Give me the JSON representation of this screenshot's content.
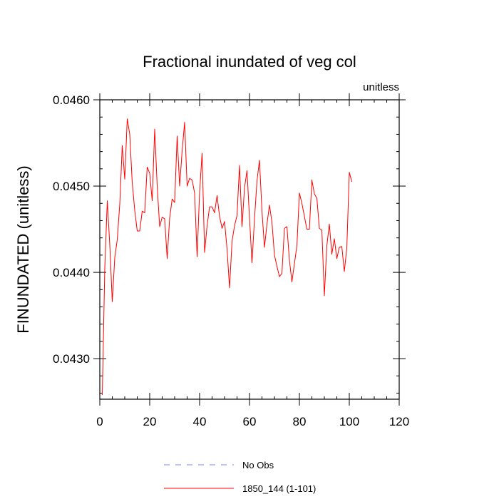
{
  "chart_data": {
    "type": "line",
    "title": "Fractional inundated of veg col",
    "units_label": "unitless",
    "xlabel": "",
    "ylabel": "FINUNDATED  (unitless)",
    "xlim": [
      0,
      120
    ],
    "ylim": [
      0.04253,
      0.046
    ],
    "xticks": [
      0,
      20,
      40,
      60,
      80,
      100,
      120
    ],
    "xtick_labels": [
      "0",
      "20",
      "40",
      "60",
      "80",
      "100",
      "120"
    ],
    "yticks": [
      0.043,
      0.044,
      0.045,
      0.046
    ],
    "ytick_labels": [
      "0.0430",
      "0.0440",
      "0.0450",
      "0.0460"
    ],
    "grid": false,
    "legend_position": "bottom-center",
    "legend": [
      {
        "label": "No Obs",
        "color": "#8080ff",
        "dash": "dashed"
      },
      {
        "label": "1850_144 (1-101)",
        "color": "#ff0000",
        "dash": "solid"
      }
    ],
    "series": [
      {
        "name": "1850_144 (1-101)",
        "color": "#ff0000",
        "x": [
          1,
          2,
          3,
          4,
          5,
          6,
          7,
          8,
          9,
          10,
          11,
          12,
          13,
          14,
          15,
          16,
          17,
          18,
          19,
          20,
          21,
          22,
          23,
          24,
          25,
          26,
          27,
          28,
          29,
          30,
          31,
          32,
          33,
          34,
          35,
          36,
          37,
          38,
          39,
          40,
          41,
          42,
          43,
          44,
          45,
          46,
          47,
          48,
          49,
          50,
          51,
          52,
          53,
          54,
          55,
          56,
          57,
          58,
          59,
          60,
          61,
          62,
          63,
          64,
          65,
          66,
          67,
          68,
          69,
          70,
          71,
          72,
          73,
          74,
          75,
          76,
          77,
          78,
          79,
          80,
          81,
          82,
          83,
          84,
          85,
          86,
          87,
          88,
          89,
          90,
          91,
          92,
          93,
          94,
          95,
          96,
          97,
          98,
          99,
          100,
          101
        ],
        "values": [
          0.04258,
          0.04405,
          0.04483,
          0.04432,
          0.04366,
          0.04417,
          0.04438,
          0.04479,
          0.04547,
          0.04508,
          0.04578,
          0.0456,
          0.04504,
          0.04472,
          0.04448,
          0.04448,
          0.04471,
          0.04469,
          0.04522,
          0.04515,
          0.04483,
          0.04566,
          0.045,
          0.04453,
          0.04464,
          0.04462,
          0.04416,
          0.04463,
          0.04485,
          0.04481,
          0.04558,
          0.045,
          0.04541,
          0.04574,
          0.045,
          0.04509,
          0.04507,
          0.04492,
          0.04418,
          0.04493,
          0.04538,
          0.04423,
          0.04454,
          0.04476,
          0.04476,
          0.04469,
          0.04489,
          0.04465,
          0.04451,
          0.04459,
          0.04427,
          0.04382,
          0.04436,
          0.04454,
          0.04466,
          0.04524,
          0.04453,
          0.04498,
          0.04518,
          0.04463,
          0.04411,
          0.04462,
          0.04506,
          0.0453,
          0.04471,
          0.04429,
          0.04456,
          0.04478,
          0.04458,
          0.0442,
          0.04407,
          0.04395,
          0.04399,
          0.04451,
          0.04453,
          0.04414,
          0.04389,
          0.0441,
          0.04431,
          0.04492,
          0.0448,
          0.04465,
          0.0445,
          0.0445,
          0.04507,
          0.04491,
          0.04486,
          0.04451,
          0.04449,
          0.04373,
          0.04431,
          0.04456,
          0.04421,
          0.04439,
          0.04416,
          0.04429,
          0.0443,
          0.04401,
          0.04428,
          0.04516,
          0.04505
        ]
      }
    ]
  }
}
